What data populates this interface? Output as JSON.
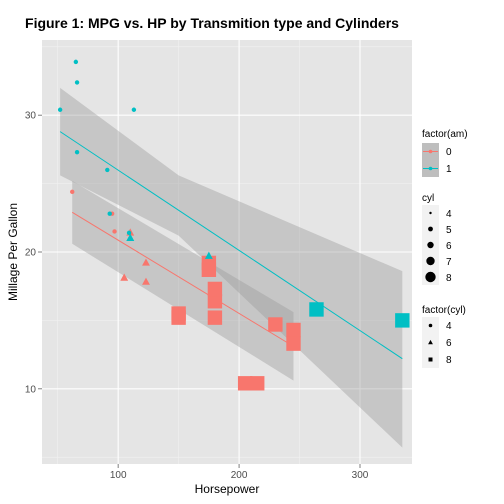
{
  "chart_data": {
    "type": "scatter",
    "title": "Figure 1: MPG vs. HP by Transmition type and Cylinders",
    "xlabel": "Horsepower",
    "ylabel": "Millage Per Gallon",
    "xlim": [
      37,
      343
    ],
    "ylim": [
      4.5,
      35.5
    ],
    "x_ticks": [
      100,
      200,
      300
    ],
    "y_ticks": [
      10,
      20,
      30
    ],
    "grid": true,
    "legend_position": "right",
    "colors": {
      "am0": "#F8766D",
      "am1": "#00BFC4",
      "panel": "#E5E5E5",
      "grid": "#FFFFFF",
      "ribbon": "#999999"
    },
    "series": [
      {
        "name": "0",
        "color": "#F8766D",
        "points": [
          {
            "x": 110,
            "y": 21.4,
            "cyl": 6
          },
          {
            "x": 175,
            "y": 18.7,
            "cyl": 8
          },
          {
            "x": 105,
            "y": 18.1,
            "cyl": 6
          },
          {
            "x": 245,
            "y": 14.3,
            "cyl": 8
          },
          {
            "x": 62,
            "y": 24.4,
            "cyl": 4
          },
          {
            "x": 95,
            "y": 22.8,
            "cyl": 4
          },
          {
            "x": 123,
            "y": 19.2,
            "cyl": 6
          },
          {
            "x": 123,
            "y": 17.8,
            "cyl": 6
          },
          {
            "x": 180,
            "y": 16.4,
            "cyl": 8
          },
          {
            "x": 180,
            "y": 17.3,
            "cyl": 8
          },
          {
            "x": 180,
            "y": 15.2,
            "cyl": 8
          },
          {
            "x": 205,
            "y": 10.4,
            "cyl": 8
          },
          {
            "x": 215,
            "y": 10.4,
            "cyl": 8
          },
          {
            "x": 230,
            "y": 14.7,
            "cyl": 8
          },
          {
            "x": 97,
            "y": 21.5,
            "cyl": 4
          },
          {
            "x": 150,
            "y": 15.5,
            "cyl": 8
          },
          {
            "x": 150,
            "y": 15.2,
            "cyl": 8
          },
          {
            "x": 245,
            "y": 13.3,
            "cyl": 8
          },
          {
            "x": 175,
            "y": 19.2,
            "cyl": 8
          }
        ],
        "fit": {
          "x": [
            62,
            245
          ],
          "y": [
            22.9,
            13.1
          ]
        },
        "ribbon": {
          "x": [
            62,
            245
          ],
          "lower": [
            20.6,
            10.6
          ],
          "upper": [
            25.2,
            15.6
          ]
        }
      },
      {
        "name": "1",
        "color": "#00BFC4",
        "points": [
          {
            "x": 110,
            "y": 21.0,
            "cyl": 6
          },
          {
            "x": 110,
            "y": 21.0,
            "cyl": 6
          },
          {
            "x": 93,
            "y": 22.8,
            "cyl": 4
          },
          {
            "x": 66,
            "y": 32.4,
            "cyl": 4
          },
          {
            "x": 52,
            "y": 30.4,
            "cyl": 4
          },
          {
            "x": 65,
            "y": 33.9,
            "cyl": 4
          },
          {
            "x": 66,
            "y": 27.3,
            "cyl": 4
          },
          {
            "x": 91,
            "y": 26.0,
            "cyl": 4
          },
          {
            "x": 113,
            "y": 30.4,
            "cyl": 4
          },
          {
            "x": 264,
            "y": 15.8,
            "cyl": 8
          },
          {
            "x": 175,
            "y": 19.7,
            "cyl": 6
          },
          {
            "x": 335,
            "y": 15.0,
            "cyl": 8
          },
          {
            "x": 109,
            "y": 21.4,
            "cyl": 4
          }
        ],
        "fit": {
          "x": [
            52,
            335
          ],
          "y": [
            28.8,
            12.2
          ]
        },
        "ribbon": {
          "x": [
            52,
            150,
            335
          ],
          "lower": [
            25.6,
            21.2,
            5.7
          ],
          "upper": [
            32.0,
            25.6,
            18.6
          ]
        }
      }
    ],
    "legends": [
      {
        "title": "factor(am)",
        "items": [
          "0",
          "1"
        ]
      },
      {
        "title": "cyl",
        "items": [
          "4",
          "5",
          "6",
          "7",
          "8"
        ]
      },
      {
        "title": "factor(cyl)",
        "items": [
          "4",
          "6",
          "8"
        ]
      }
    ]
  }
}
